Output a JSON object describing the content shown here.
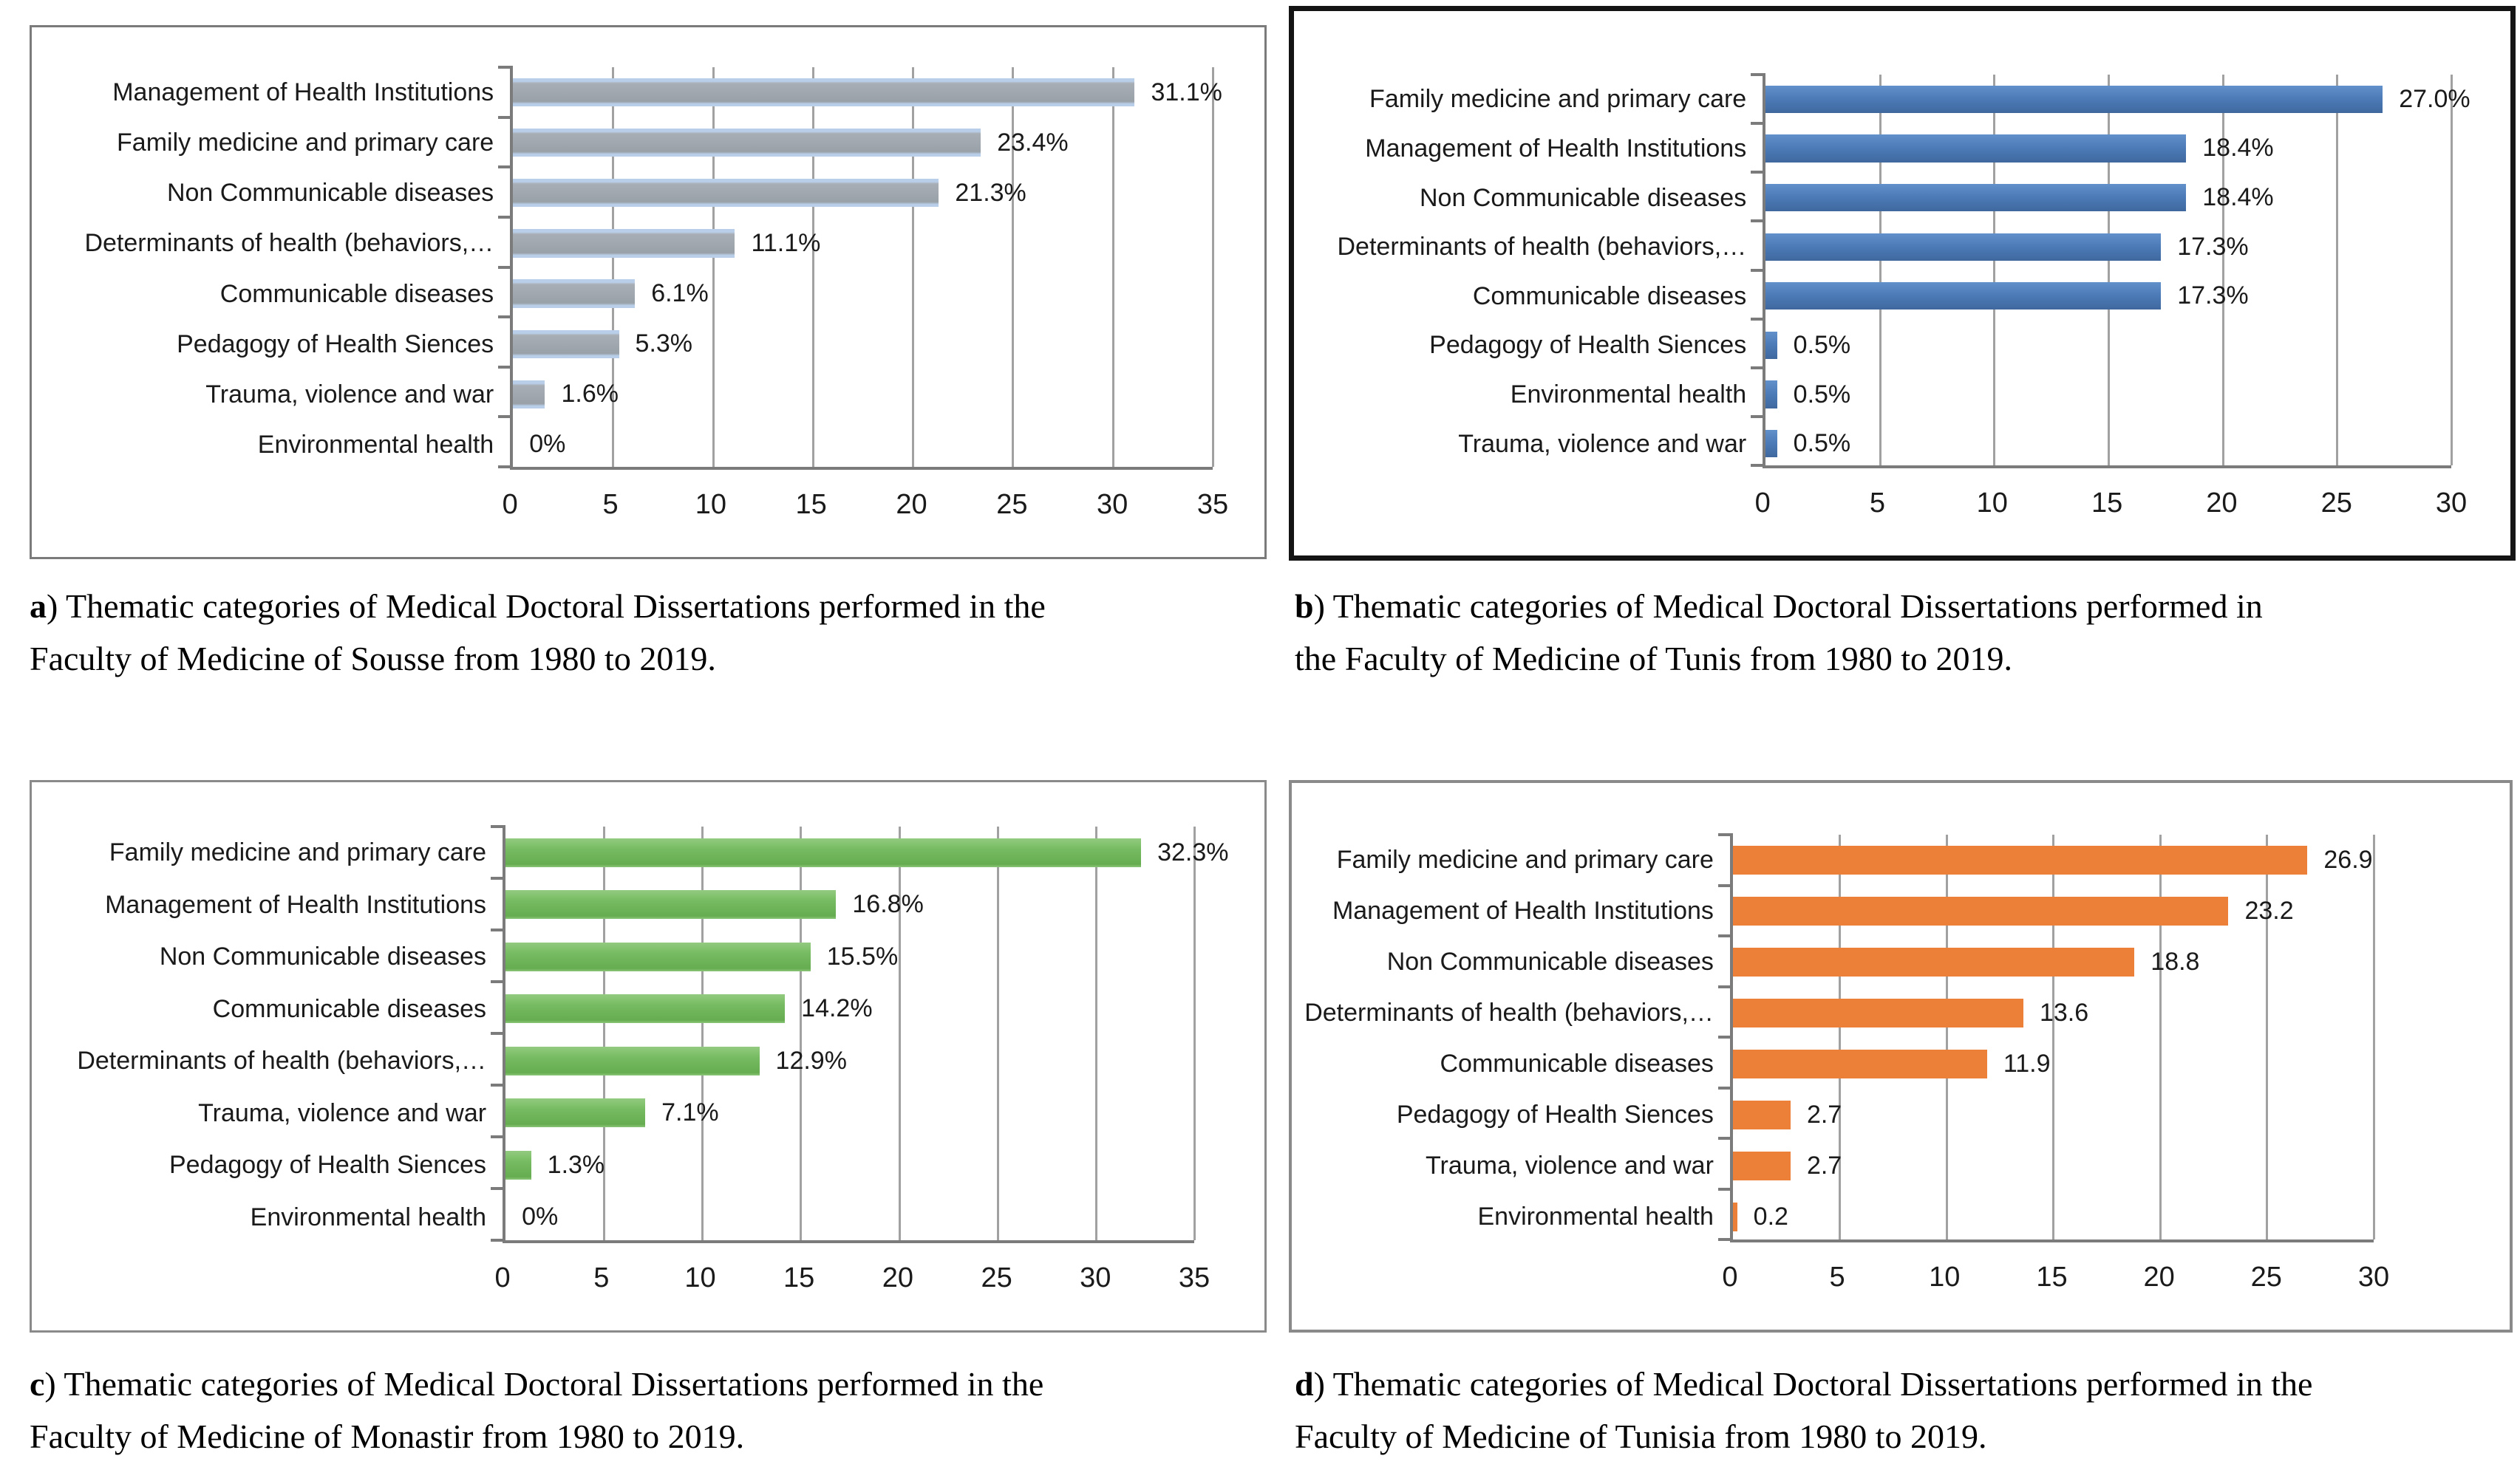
{
  "chart_data": [
    {
      "panel": "a",
      "type": "bar",
      "orientation": "horizontal",
      "categories": [
        "Management of Health Institutions",
        "Family medicine and primary care",
        "Non Communicable diseases",
        "Determinants of health (behaviors,…",
        "Communicable diseases",
        "Pedagogy of Health Siences",
        "Trauma, violence and war",
        "Environmental health"
      ],
      "values": [
        31.1,
        23.4,
        21.3,
        11.1,
        6.1,
        5.3,
        1.6,
        0
      ],
      "value_labels": [
        "31.1%",
        "23.4%",
        "21.3%",
        "11.1%",
        "6.1%",
        "5.3%",
        "1.6%",
        "0%"
      ],
      "xlim": [
        0,
        35
      ],
      "xticks": [
        0,
        5,
        10,
        15,
        20,
        25,
        30,
        35
      ],
      "grid": true,
      "legend": "none",
      "bar_color": "#9aa2a9",
      "bar_gradient": [
        "#b9cfe9 0%",
        "#b9cfe9 11%",
        "#a8aeb5 18%",
        "#99a1a8 83%",
        "#b9cfe9 91%",
        "#b9cfe9 100%"
      ],
      "caption_label": "a",
      "caption_text": ") Thematic categories of Medical Doctoral Dissertations performed in the\nFaculty of Medicine of Sousse from 1980 to 2019."
    },
    {
      "panel": "b",
      "type": "bar",
      "orientation": "horizontal",
      "categories": [
        "Family medicine and primary care",
        "Management of Health Institutions",
        "Non Communicable diseases",
        "Determinants of health (behaviors,…",
        "Communicable diseases",
        "Pedagogy of Health Siences",
        "Environmental health",
        "Trauma, violence and war"
      ],
      "values": [
        27.0,
        18.4,
        18.4,
        17.3,
        17.3,
        0.5,
        0.5,
        0.5
      ],
      "value_labels": [
        "27.0%",
        "18.4%",
        "18.4%",
        "17.3%",
        "17.3%",
        "0.5%",
        "0.5%",
        "0.5%"
      ],
      "xlim": [
        0,
        30
      ],
      "xticks": [
        0,
        5,
        10,
        15,
        20,
        25,
        30
      ],
      "grid": true,
      "legend": "none",
      "bar_color": "#4d7cb9",
      "bar_gradient": [
        "#6190ca 0%",
        "#4d7cb9 45%",
        "#3f689e 100%"
      ],
      "caption_label": "b",
      "caption_text": ") Thematic categories of Medical Doctoral Dissertations performed in\nthe Faculty of Medicine of Tunis from 1980 to 2019."
    },
    {
      "panel": "c",
      "type": "bar",
      "orientation": "horizontal",
      "categories": [
        "Family medicine and primary care",
        "Management of Health Institutions",
        "Non Communicable diseases",
        "Communicable diseases",
        "Determinants of health (behaviors,…",
        "Trauma, violence and war",
        "Pedagogy of Health Siences",
        "Environmental health"
      ],
      "values": [
        32.3,
        16.8,
        15.5,
        14.2,
        12.9,
        7.1,
        1.3,
        0
      ],
      "value_labels": [
        "32.3%",
        "16.8%",
        "15.5%",
        "14.2%",
        "12.9%",
        "7.1%",
        "1.3%",
        "0%"
      ],
      "xlim": [
        0,
        35
      ],
      "xticks": [
        0,
        5,
        10,
        15,
        20,
        25,
        30,
        35
      ],
      "grid": true,
      "legend": "none",
      "bar_color": "#76bb61",
      "bar_gradient": [
        "#93cb80 0%",
        "#76bb61 38%",
        "#66ac50 90%",
        "#8cc77b 100%"
      ],
      "caption_label": "c",
      "caption_text": ") Thematic categories of Medical Doctoral Dissertations performed in the\nFaculty of Medicine of Monastir from 1980 to 2019."
    },
    {
      "panel": "d",
      "type": "bar",
      "orientation": "horizontal",
      "categories": [
        "Family medicine and primary care",
        "Management of Health Institutions",
        "Non Communicable diseases",
        "Determinants of health (behaviors,…",
        "Communicable diseases",
        "Pedagogy of Health Siences",
        "Trauma, violence and war",
        "Environmental health"
      ],
      "values": [
        26.9,
        23.2,
        18.8,
        13.6,
        11.9,
        2.7,
        2.7,
        0.2
      ],
      "value_labels": [
        "26.9",
        "23.2",
        "18.8",
        "13.6",
        "11.9",
        "2.7",
        "2.7",
        "0.2"
      ],
      "xlim": [
        0,
        30
      ],
      "xticks": [
        0,
        5,
        10,
        15,
        20,
        25,
        30
      ],
      "grid": true,
      "legend": "none",
      "bar_color": "#ed8038",
      "bar_gradient": [
        "#ed8038 0%",
        "#ed8038 100%"
      ],
      "caption_label": "d",
      "caption_text": ") Thematic categories of Medical Doctoral Dissertations performed in the\nFaculty of Medicine of Tunisia from 1980 to 2019."
    }
  ]
}
